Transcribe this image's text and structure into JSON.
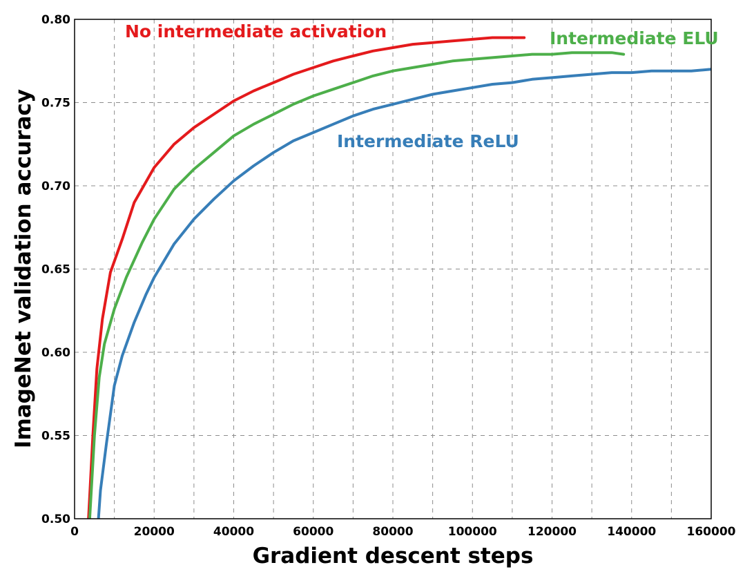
{
  "chart_data": {
    "type": "line",
    "title": "",
    "xlabel": "Gradient descent steps",
    "ylabel": "ImageNet validation accuracy",
    "xlim": [
      0,
      160000
    ],
    "ylim": [
      0.5,
      0.8
    ],
    "xticks": [
      0,
      20000,
      40000,
      60000,
      80000,
      100000,
      120000,
      140000,
      160000
    ],
    "xtick_labels": [
      "0",
      "20000",
      "40000",
      "60000",
      "80000",
      "100000",
      "120000",
      "140000",
      "160000"
    ],
    "yticks": [
      0.5,
      0.55,
      0.6,
      0.65,
      0.7,
      0.75,
      0.8
    ],
    "ytick_labels": [
      "0.50",
      "0.55",
      "0.60",
      "0.65",
      "0.70",
      "0.75",
      "0.80"
    ],
    "grid": true,
    "legend": "inline labels",
    "series": [
      {
        "name": "No intermediate activation",
        "color": "#e41a1c",
        "points": [
          [
            3500,
            0.5
          ],
          [
            4600,
            0.55
          ],
          [
            5600,
            0.59
          ],
          [
            7000,
            0.62
          ],
          [
            9000,
            0.648
          ],
          [
            12000,
            0.668
          ],
          [
            15000,
            0.69
          ],
          [
            20000,
            0.711
          ],
          [
            25000,
            0.725
          ],
          [
            30000,
            0.735
          ],
          [
            35000,
            0.743
          ],
          [
            40000,
            0.751
          ],
          [
            45000,
            0.757
          ],
          [
            50000,
            0.762
          ],
          [
            55000,
            0.767
          ],
          [
            60000,
            0.771
          ],
          [
            65000,
            0.775
          ],
          [
            70000,
            0.778
          ],
          [
            75000,
            0.781
          ],
          [
            80000,
            0.783
          ],
          [
            85000,
            0.785
          ],
          [
            90000,
            0.786
          ],
          [
            95000,
            0.787
          ],
          [
            100000,
            0.788
          ],
          [
            105000,
            0.789
          ],
          [
            110000,
            0.789
          ],
          [
            113000,
            0.789
          ]
        ]
      },
      {
        "name": "Intermediate ELU",
        "color": "#4daf4a",
        "points": [
          [
            3800,
            0.5
          ],
          [
            5000,
            0.55
          ],
          [
            6200,
            0.585
          ],
          [
            7500,
            0.605
          ],
          [
            10000,
            0.626
          ],
          [
            13000,
            0.645
          ],
          [
            17000,
            0.666
          ],
          [
            20000,
            0.68
          ],
          [
            25000,
            0.698
          ],
          [
            30000,
            0.71
          ],
          [
            35000,
            0.72
          ],
          [
            40000,
            0.73
          ],
          [
            45000,
            0.737
          ],
          [
            50000,
            0.743
          ],
          [
            55000,
            0.749
          ],
          [
            60000,
            0.754
          ],
          [
            65000,
            0.758
          ],
          [
            70000,
            0.762
          ],
          [
            75000,
            0.766
          ],
          [
            80000,
            0.769
          ],
          [
            85000,
            0.771
          ],
          [
            90000,
            0.773
          ],
          [
            95000,
            0.775
          ],
          [
            100000,
            0.776
          ],
          [
            105000,
            0.777
          ],
          [
            110000,
            0.778
          ],
          [
            115000,
            0.779
          ],
          [
            120000,
            0.779
          ],
          [
            125000,
            0.78
          ],
          [
            130000,
            0.78
          ],
          [
            135000,
            0.78
          ],
          [
            138000,
            0.779
          ]
        ]
      },
      {
        "name": "Intermediate ReLU",
        "color": "#377eb8",
        "points": [
          [
            6000,
            0.5
          ],
          [
            6500,
            0.517
          ],
          [
            8000,
            0.545
          ],
          [
            10000,
            0.58
          ],
          [
            12000,
            0.598
          ],
          [
            15000,
            0.618
          ],
          [
            18000,
            0.635
          ],
          [
            20000,
            0.645
          ],
          [
            25000,
            0.665
          ],
          [
            30000,
            0.68
          ],
          [
            35000,
            0.692
          ],
          [
            40000,
            0.703
          ],
          [
            45000,
            0.712
          ],
          [
            50000,
            0.72
          ],
          [
            55000,
            0.727
          ],
          [
            60000,
            0.732
          ],
          [
            65000,
            0.737
          ],
          [
            70000,
            0.742
          ],
          [
            75000,
            0.746
          ],
          [
            80000,
            0.749
          ],
          [
            85000,
            0.752
          ],
          [
            90000,
            0.755
          ],
          [
            95000,
            0.757
          ],
          [
            100000,
            0.759
          ],
          [
            105000,
            0.761
          ],
          [
            110000,
            0.762
          ],
          [
            115000,
            0.764
          ],
          [
            120000,
            0.765
          ],
          [
            125000,
            0.766
          ],
          [
            130000,
            0.767
          ],
          [
            135000,
            0.768
          ],
          [
            140000,
            0.768
          ],
          [
            145000,
            0.769
          ],
          [
            150000,
            0.769
          ],
          [
            155000,
            0.769
          ],
          [
            160000,
            0.77
          ]
        ]
      }
    ]
  }
}
